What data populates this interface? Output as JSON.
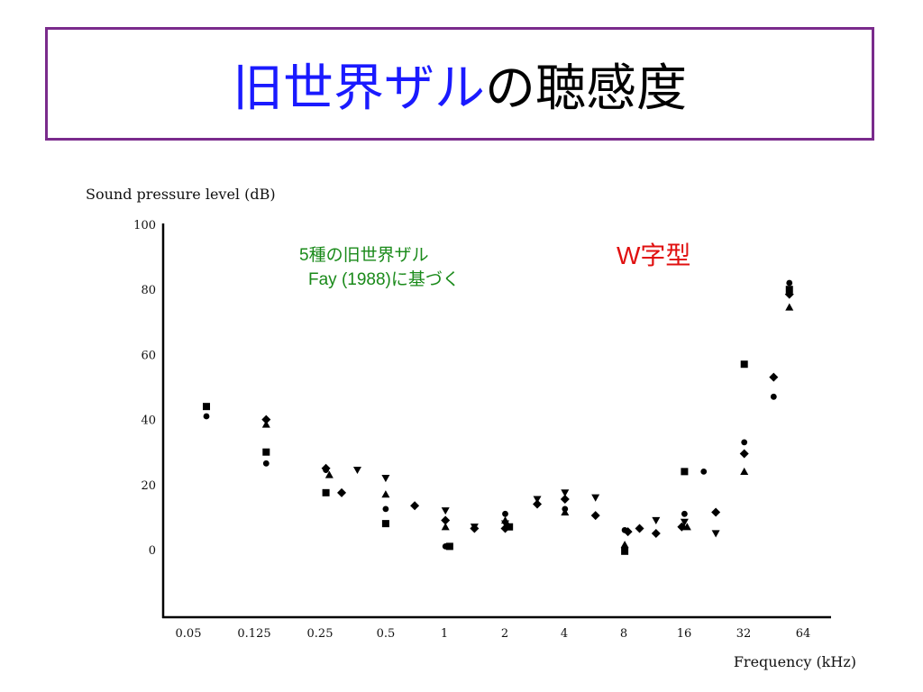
{
  "slide": {
    "title_accent": "旧世界ザル",
    "title_rest": "の聴感度",
    "annotation_line1": "5種の旧世界ザル",
    "annotation_line2": "Fay (1988)に基づく",
    "annotation_shape": "W字型",
    "colors": {
      "frame": "#7a2b8c",
      "title_accent": "#1a1aff",
      "annotation_green": "#1a8a1a",
      "annotation_red": "#e01010"
    }
  },
  "chart_data": {
    "type": "scatter",
    "ylabel": "Sound pressure level (dB)",
    "xlabel": "Frequency (kHz)",
    "x_scale": "log",
    "x_ticks": [
      "0.05",
      "0.125",
      "0.25",
      "0.5",
      "1",
      "2",
      "4",
      "8",
      "16",
      "32",
      "64"
    ],
    "y_ticks": [
      "100",
      "80",
      "60",
      "40",
      "20",
      "0"
    ],
    "ylim": [
      -20,
      100
    ],
    "grid": false,
    "series": [
      {
        "marker": "circle",
        "points": [
          {
            "x": 0.0625,
            "y": 41
          },
          {
            "x": 0.125,
            "y": 26.5
          },
          {
            "x": 0.25,
            "y": 24.5
          },
          {
            "x": 0.5,
            "y": 12.5
          },
          {
            "x": 1,
            "y": 1
          },
          {
            "x": 2,
            "y": 11
          },
          {
            "x": 4,
            "y": 12.5
          },
          {
            "x": 8,
            "y": 6
          },
          {
            "x": 16,
            "y": 11
          },
          {
            "x": 20,
            "y": 24
          },
          {
            "x": 32,
            "y": 33
          },
          {
            "x": 45,
            "y": 47
          },
          {
            "x": 54,
            "y": 82
          }
        ]
      },
      {
        "marker": "square",
        "points": [
          {
            "x": 0.0625,
            "y": 44
          },
          {
            "x": 0.125,
            "y": 30
          },
          {
            "x": 0.25,
            "y": 17.5
          },
          {
            "x": 0.5,
            "y": 8
          },
          {
            "x": 1.05,
            "y": 1
          },
          {
            "x": 2.1,
            "y": 7
          },
          {
            "x": 8,
            "y": -0.5
          },
          {
            "x": 16,
            "y": 24
          },
          {
            "x": 32,
            "y": 57
          },
          {
            "x": 54,
            "y": 80
          }
        ]
      },
      {
        "marker": "triangle-up",
        "points": [
          {
            "x": 0.125,
            "y": 38.5
          },
          {
            "x": 0.26,
            "y": 23
          },
          {
            "x": 0.5,
            "y": 17
          },
          {
            "x": 1,
            "y": 7
          },
          {
            "x": 2,
            "y": 9
          },
          {
            "x": 4,
            "y": 11.5
          },
          {
            "x": 8,
            "y": 1.5
          },
          {
            "x": 16.5,
            "y": 7
          },
          {
            "x": 32,
            "y": 24
          },
          {
            "x": 54,
            "y": 74.5
          }
        ]
      },
      {
        "marker": "triangle-down",
        "points": [
          {
            "x": 0.36,
            "y": 24.5
          },
          {
            "x": 0.5,
            "y": 22
          },
          {
            "x": 1,
            "y": 12
          },
          {
            "x": 1.4,
            "y": 7
          },
          {
            "x": 2,
            "y": 8
          },
          {
            "x": 2.9,
            "y": 15.5
          },
          {
            "x": 4,
            "y": 17.5
          },
          {
            "x": 5.7,
            "y": 16
          },
          {
            "x": 11.5,
            "y": 9
          },
          {
            "x": 16,
            "y": 8.5
          },
          {
            "x": 23,
            "y": 5
          }
        ]
      },
      {
        "marker": "diamond",
        "points": [
          {
            "x": 0.125,
            "y": 40
          },
          {
            "x": 0.25,
            "y": 25
          },
          {
            "x": 0.3,
            "y": 17.5
          },
          {
            "x": 0.7,
            "y": 13.5
          },
          {
            "x": 1,
            "y": 9
          },
          {
            "x": 1.4,
            "y": 6.5
          },
          {
            "x": 2,
            "y": 6.5
          },
          {
            "x": 2.9,
            "y": 14
          },
          {
            "x": 4,
            "y": 15.5
          },
          {
            "x": 5.7,
            "y": 10.5
          },
          {
            "x": 8.3,
            "y": 5.5
          },
          {
            "x": 9.5,
            "y": 6.5
          },
          {
            "x": 11.5,
            "y": 5
          },
          {
            "x": 15.5,
            "y": 7
          },
          {
            "x": 23,
            "y": 11.5
          },
          {
            "x": 32,
            "y": 29.5
          },
          {
            "x": 45,
            "y": 53
          },
          {
            "x": 54,
            "y": 78.5
          }
        ]
      }
    ]
  }
}
